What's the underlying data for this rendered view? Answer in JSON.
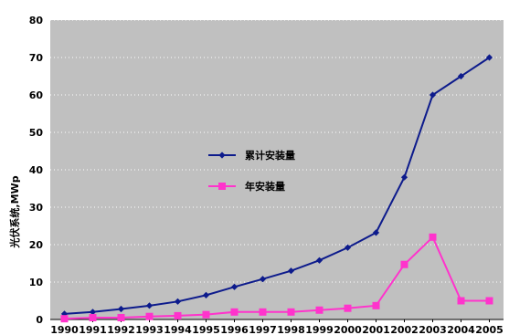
{
  "chart_data": {
    "type": "line",
    "title": "",
    "xlabel": "",
    "ylabel": "光伏系统,MWp",
    "x": [
      "1990",
      "1991",
      "1992",
      "1993",
      "1994",
      "1995",
      "1996",
      "1997",
      "1998",
      "1999",
      "2000",
      "2001",
      "2002",
      "2003",
      "2004",
      "2005"
    ],
    "ylim": [
      0,
      80
    ],
    "yticks": [
      0,
      10,
      20,
      30,
      40,
      50,
      60,
      70,
      80
    ],
    "grid": "horizontal-dotted",
    "plot_background": "#c0c0c0",
    "legend_position": "center-left",
    "series": [
      {
        "name": "累计安装量",
        "color": "#0d1b8c",
        "marker": "diamond",
        "values": [
          1.5,
          2,
          2.8,
          3.7,
          4.8,
          6.5,
          8.7,
          10.8,
          13,
          15.8,
          19.2,
          23.2,
          38,
          60,
          65,
          70
        ]
      },
      {
        "name": "年安装量",
        "color": "#ff33cc",
        "marker": "square",
        "values": [
          0.2,
          0.5,
          0.5,
          0.8,
          1,
          1.3,
          2,
          2,
          2,
          2.5,
          3,
          3.7,
          14.7,
          22,
          5,
          5
        ]
      }
    ]
  }
}
